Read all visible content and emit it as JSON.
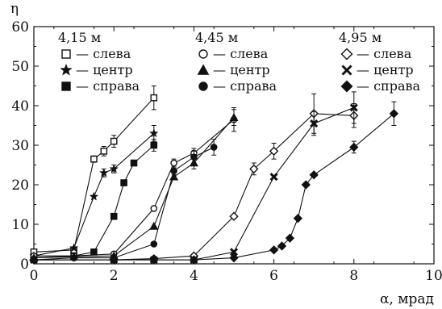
{
  "chart_data": {
    "type": "scatter",
    "xlabel": "α, мрад",
    "ylabel": "η",
    "xlim": [
      0,
      10
    ],
    "ylim": [
      0,
      60
    ],
    "x_ticks": [
      0,
      2,
      4,
      6,
      8,
      10
    ],
    "y_ticks": [
      0,
      10,
      20,
      30,
      40,
      50,
      60
    ],
    "grid": false,
    "legend_placement": "top",
    "legend_groups": [
      {
        "title": "4,15 м",
        "entries": [
          {
            "marker": "square-open",
            "text": "— слева"
          },
          {
            "marker": "star",
            "text": "— центр"
          },
          {
            "marker": "square-filled",
            "text": "— справа"
          }
        ]
      },
      {
        "title": "4,45 м",
        "entries": [
          {
            "marker": "circle-open",
            "text": "— слева"
          },
          {
            "marker": "triangle-filled",
            "text": "— центр"
          },
          {
            "marker": "circle-filled",
            "text": "— справа"
          }
        ]
      },
      {
        "title": "4,95 м",
        "entries": [
          {
            "marker": "diamond-open",
            "text": "— слева"
          },
          {
            "marker": "cross",
            "text": "— центр"
          },
          {
            "marker": "diamond-filled",
            "text": "— справа"
          }
        ]
      }
    ],
    "series": [
      {
        "marker": "square-open",
        "points": [
          [
            0,
            3
          ],
          [
            1,
            3.5
          ],
          [
            1.5,
            26.5
          ],
          [
            1.75,
            28.5
          ],
          [
            2,
            31
          ],
          [
            3,
            42
          ]
        ],
        "errors": [
          0,
          0,
          0.8,
          1.2,
          1.5,
          3
        ]
      },
      {
        "marker": "star",
        "points": [
          [
            0,
            2
          ],
          [
            1,
            4
          ],
          [
            1.5,
            17
          ],
          [
            1.75,
            23
          ],
          [
            2,
            24
          ],
          [
            3,
            33
          ]
        ],
        "errors": [
          0,
          0,
          0,
          1,
          1,
          2
        ]
      },
      {
        "marker": "square-filled",
        "points": [
          [
            0,
            1.5
          ],
          [
            1,
            2
          ],
          [
            1.5,
            3
          ],
          [
            2,
            12
          ],
          [
            2.25,
            20.5
          ],
          [
            2.5,
            25.5
          ],
          [
            3,
            30
          ]
        ],
        "errors": [
          0,
          0,
          0,
          0,
          0,
          0,
          1.5
        ]
      },
      {
        "marker": "circle-open",
        "points": [
          [
            0,
            2
          ],
          [
            1,
            2
          ],
          [
            2,
            2.5
          ],
          [
            3,
            14
          ],
          [
            3.5,
            25.5
          ],
          [
            4,
            28
          ],
          [
            5,
            36.5
          ]
        ],
        "errors": [
          0,
          0,
          0,
          0,
          1,
          1.2,
          3
        ]
      },
      {
        "marker": "triangle-filled",
        "points": [
          [
            0,
            1.5
          ],
          [
            1,
            1.8
          ],
          [
            2,
            2
          ],
          [
            3,
            9.5
          ],
          [
            3.5,
            22
          ],
          [
            4,
            25.5
          ],
          [
            5,
            37
          ]
        ],
        "errors": [
          0,
          0,
          0,
          0,
          0,
          1.5,
          2
        ]
      },
      {
        "marker": "circle-filled",
        "points": [
          [
            0,
            1
          ],
          [
            1,
            1.5
          ],
          [
            2,
            1.5
          ],
          [
            3,
            5
          ],
          [
            3.5,
            23.5
          ],
          [
            4,
            27
          ],
          [
            4.5,
            29.5
          ]
        ],
        "errors": [
          0,
          0,
          0,
          0,
          1,
          1.5,
          2
        ]
      },
      {
        "marker": "diamond-open",
        "points": [
          [
            0,
            1
          ],
          [
            2,
            1
          ],
          [
            3,
            1.3
          ],
          [
            4,
            2
          ],
          [
            5,
            12
          ],
          [
            5.5,
            24
          ],
          [
            6,
            28.5
          ],
          [
            7,
            38
          ],
          [
            8,
            37.5
          ]
        ],
        "errors": [
          0,
          0,
          0,
          0,
          0,
          1.5,
          2,
          5,
          3
        ]
      },
      {
        "marker": "cross",
        "points": [
          [
            0,
            1
          ],
          [
            2,
            1
          ],
          [
            3,
            1
          ],
          [
            4,
            1
          ],
          [
            5,
            3
          ],
          [
            6,
            22
          ],
          [
            7,
            35.5
          ],
          [
            8,
            39.5
          ]
        ],
        "errors": [
          0,
          0,
          0,
          0,
          0,
          0,
          3,
          4
        ]
      },
      {
        "marker": "diamond-filled",
        "points": [
          [
            0,
            1
          ],
          [
            2,
            1
          ],
          [
            3,
            1
          ],
          [
            4,
            1
          ],
          [
            5,
            1.5
          ],
          [
            6,
            3.5
          ],
          [
            6.2,
            4.5
          ],
          [
            6.4,
            6.5
          ],
          [
            6.6,
            11.5
          ],
          [
            6.8,
            20
          ],
          [
            7,
            22.5
          ],
          [
            8,
            29.5
          ],
          [
            9,
            38
          ]
        ],
        "errors": [
          0,
          0,
          0,
          0,
          0,
          0,
          0,
          0,
          0,
          0,
          0,
          1.5,
          3
        ]
      }
    ]
  }
}
